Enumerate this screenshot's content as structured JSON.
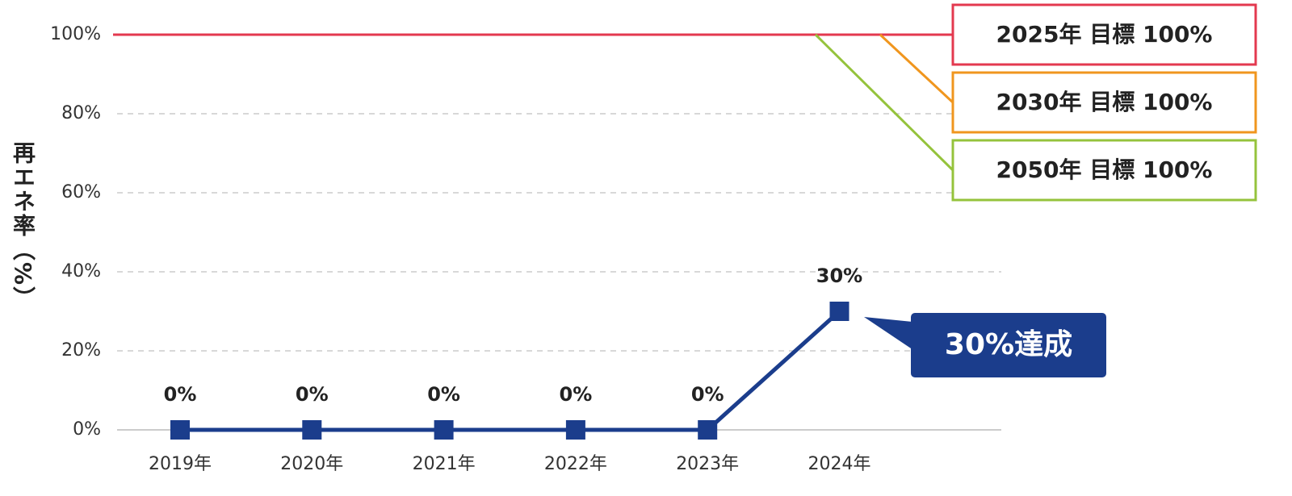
{
  "chart_data": {
    "type": "line",
    "ylabel": "再エネ率（%）",
    "categories": [
      "2019年",
      "2020年",
      "2021年",
      "2022年",
      "2023年",
      "2024年"
    ],
    "series": [
      {
        "color": "#1b3d8c",
        "values": [
          0,
          0,
          0,
          0,
          0,
          30
        ],
        "value_labels": [
          "0%",
          "0%",
          "0%",
          "0%",
          "0%",
          "30%"
        ]
      }
    ],
    "ylim": [
      0,
      100
    ],
    "yticks": [
      {
        "value": 0,
        "label": "0%"
      },
      {
        "value": 20,
        "label": "20%"
      },
      {
        "value": 40,
        "label": "40%"
      },
      {
        "value": 60,
        "label": "60%"
      },
      {
        "value": 80,
        "label": "80%"
      },
      {
        "value": 100,
        "label": "100%"
      }
    ],
    "grid": true,
    "targets": [
      {
        "label": "2025年 目標 100%",
        "value": 100,
        "color": "#e3394f"
      },
      {
        "label": "2030年 目標 100%",
        "value": 100,
        "color": "#f0961e"
      },
      {
        "label": "2050年 目標 100%",
        "value": 100,
        "color": "#95c33c"
      }
    ],
    "callout": "30%達成"
  }
}
